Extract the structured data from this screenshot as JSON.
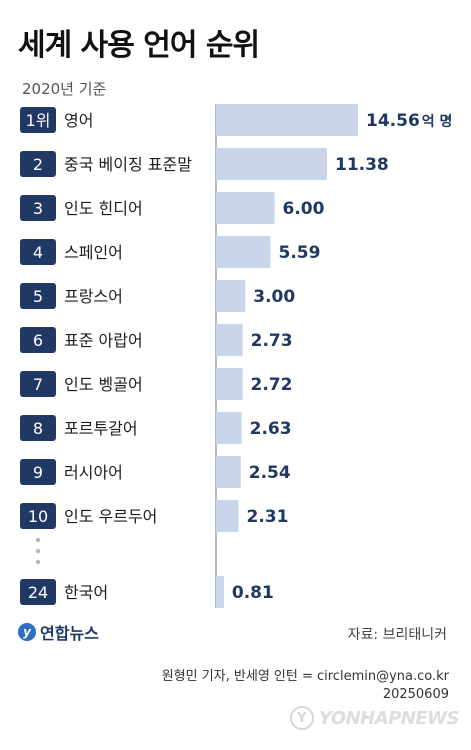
{
  "header": {
    "title": "세계 사용 언어 순위",
    "subtitle": "2020년 기준"
  },
  "chart_data": {
    "type": "bar",
    "orientation": "horizontal",
    "title": "세계 사용 언어 순위",
    "subtitle": "2020년 기준",
    "unit": "억 명",
    "rows": [
      {
        "rank": "1위",
        "language": "영어",
        "value": 14.56,
        "label": "14.56"
      },
      {
        "rank": "2",
        "language": "중국 베이징 표준말",
        "value": 11.38,
        "label": "11.38"
      },
      {
        "rank": "3",
        "language": "인도 힌디어",
        "value": 6.0,
        "label": "6.00"
      },
      {
        "rank": "4",
        "language": "스페인어",
        "value": 5.59,
        "label": "5.59"
      },
      {
        "rank": "5",
        "language": "프랑스어",
        "value": 3.0,
        "label": "3.00"
      },
      {
        "rank": "6",
        "language": "표준 아랍어",
        "value": 2.73,
        "label": "2.73"
      },
      {
        "rank": "7",
        "language": "인도 벵골어",
        "value": 2.72,
        "label": "2.72"
      },
      {
        "rank": "8",
        "language": "포르투갈어",
        "value": 2.63,
        "label": "2.63"
      },
      {
        "rank": "9",
        "language": "러시아어",
        "value": 2.54,
        "label": "2.54"
      },
      {
        "rank": "10",
        "language": "인도 우르두어",
        "value": 2.31,
        "label": "2.31"
      },
      {
        "rank": "24",
        "language": "한국어",
        "value": 0.81,
        "label": "0.81"
      }
    ],
    "xlim": [
      0,
      14.56
    ],
    "grid": false,
    "legend": "none",
    "colors": {
      "rank_box": "#1f3864",
      "bar": "#c9d5ea",
      "value": "#1f3864"
    }
  },
  "footer": {
    "logo_text": "연합뉴스",
    "source": "자료: 브리태니커",
    "credit": "원형민 기자, 반세영 인턴 = circlemin@yna.co.kr",
    "date": "20250609",
    "watermark": "YONHAPNEWS"
  }
}
